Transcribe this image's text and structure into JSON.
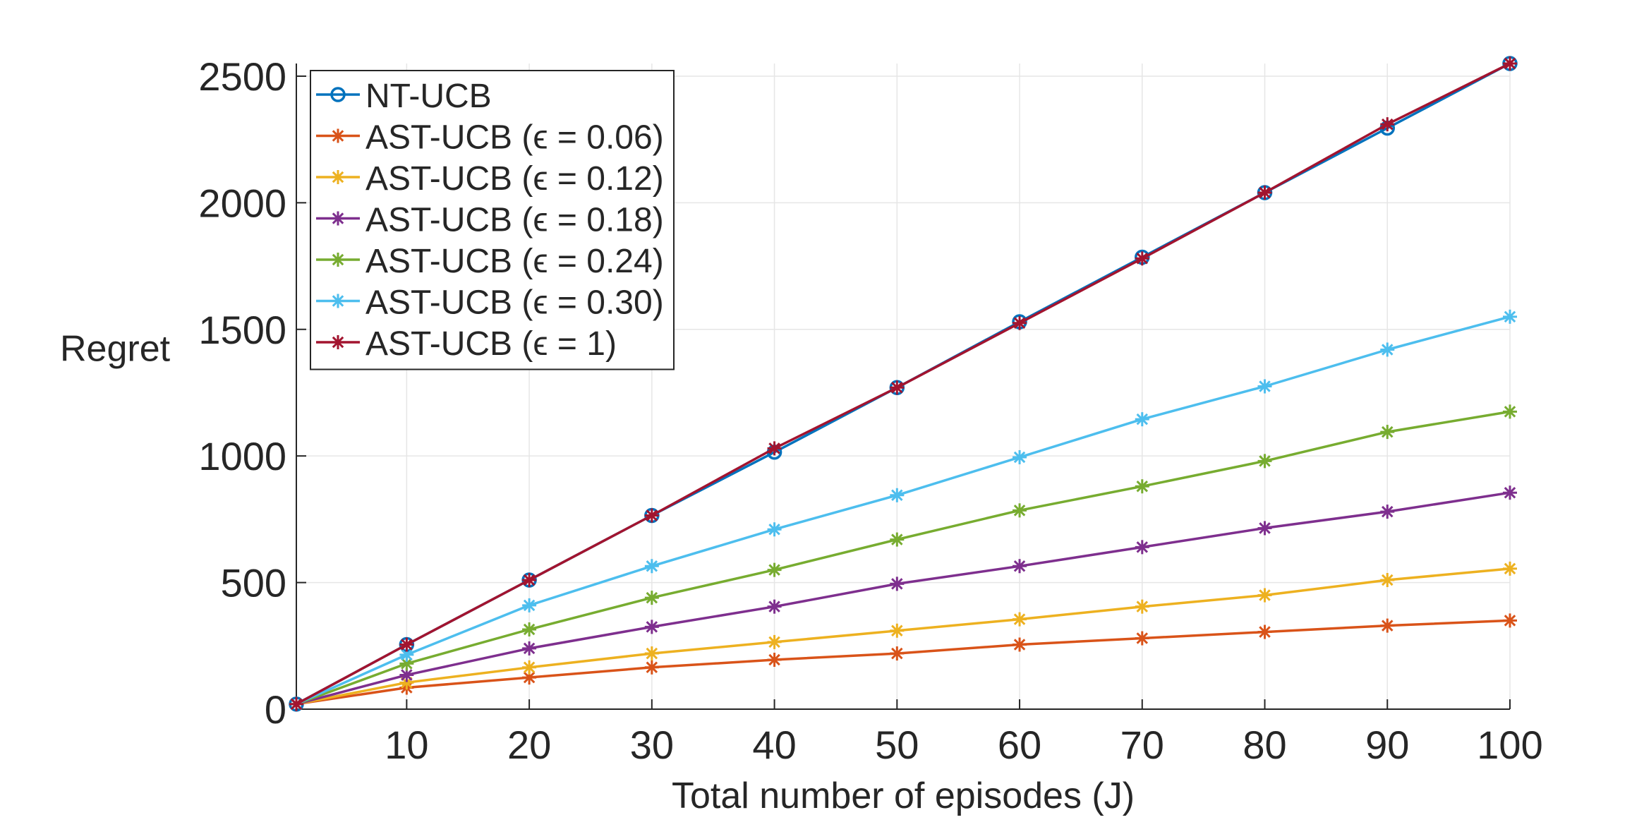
{
  "chart_data": {
    "type": "line",
    "title": "",
    "xlabel": "Total number of episodes (J)",
    "ylabel": "Regret",
    "xlim": [
      1,
      100
    ],
    "ylim": [
      0,
      2550
    ],
    "xticks": [
      10,
      20,
      30,
      40,
      50,
      60,
      70,
      80,
      90,
      100
    ],
    "yticks": [
      0,
      500,
      1000,
      1500,
      2000,
      2500
    ],
    "grid": true,
    "legend_location": "top-left",
    "x": [
      1,
      10,
      20,
      30,
      40,
      50,
      60,
      70,
      80,
      90,
      100
    ],
    "series": [
      {
        "name": "NT-UCB",
        "color": "#0072BD",
        "marker": "circle",
        "values": [
          20,
          255,
          510,
          765,
          1015,
          1270,
          1530,
          1785,
          2040,
          2295,
          2550
        ]
      },
      {
        "name": "AST-UCB (ϵ = 0.06)",
        "color": "#D95319",
        "marker": "star",
        "values": [
          20,
          85,
          125,
          165,
          195,
          220,
          255,
          280,
          305,
          330,
          350
        ]
      },
      {
        "name": "AST-UCB (ϵ = 0.12)",
        "color": "#EDB120",
        "marker": "star",
        "values": [
          20,
          105,
          165,
          220,
          265,
          310,
          355,
          405,
          450,
          510,
          555
        ]
      },
      {
        "name": "AST-UCB (ϵ = 0.18)",
        "color": "#7E2F8E",
        "marker": "star",
        "values": [
          20,
          135,
          240,
          325,
          405,
          495,
          565,
          640,
          715,
          780,
          855
        ]
      },
      {
        "name": "AST-UCB (ϵ = 0.24)",
        "color": "#77AC30",
        "marker": "star",
        "values": [
          20,
          180,
          315,
          440,
          550,
          670,
          785,
          880,
          980,
          1095,
          1175
        ]
      },
      {
        "name": "AST-UCB (ϵ = 0.30)",
        "color": "#4DBEEE",
        "marker": "star",
        "values": [
          20,
          215,
          410,
          565,
          710,
          845,
          995,
          1145,
          1275,
          1420,
          1550
        ]
      },
      {
        "name": "AST-UCB (ϵ = 1)",
        "color": "#A2142F",
        "marker": "star",
        "values": [
          20,
          255,
          510,
          765,
          1030,
          1270,
          1525,
          1780,
          2040,
          2310,
          2550
        ]
      }
    ]
  }
}
